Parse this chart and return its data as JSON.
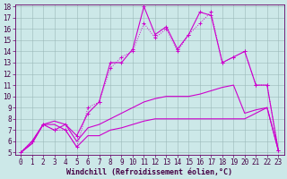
{
  "title": "",
  "xlabel": "Windchill (Refroidissement éolien,°C)",
  "background_color": "#cce8e8",
  "grid_color": "#b0c8c8",
  "line_color": "#cc00cc",
  "xlim": [
    -0.5,
    23.5
  ],
  "ylim": [
    4.8,
    18.2
  ],
  "xticks": [
    0,
    1,
    2,
    3,
    4,
    5,
    6,
    7,
    8,
    9,
    10,
    11,
    12,
    13,
    14,
    15,
    16,
    17,
    18,
    19,
    20,
    21,
    22,
    23
  ],
  "yticks": [
    5,
    6,
    7,
    8,
    9,
    10,
    11,
    12,
    13,
    14,
    15,
    16,
    17,
    18
  ],
  "line1_x": [
    0,
    1,
    2,
    3,
    4,
    5,
    6,
    7,
    8,
    9,
    10,
    11,
    12,
    13,
    14,
    15,
    16,
    17,
    18,
    19,
    20,
    21,
    22,
    23
  ],
  "line1_y": [
    5.0,
    5.8,
    7.5,
    7.5,
    7.0,
    5.5,
    6.5,
    6.5,
    7.0,
    7.2,
    7.5,
    7.8,
    8.0,
    8.0,
    8.0,
    8.0,
    8.0,
    8.0,
    8.0,
    8.0,
    8.0,
    8.5,
    9.0,
    5.2
  ],
  "line2_x": [
    0,
    1,
    2,
    3,
    4,
    5,
    6,
    7,
    8,
    9,
    10,
    11,
    12,
    13,
    14,
    15,
    16,
    17,
    18,
    19,
    20,
    21,
    22,
    23
  ],
  "line2_y": [
    5.0,
    5.8,
    7.5,
    7.8,
    7.5,
    6.0,
    7.2,
    7.5,
    8.0,
    8.5,
    9.0,
    9.5,
    9.8,
    10.0,
    10.0,
    10.0,
    10.2,
    10.5,
    10.8,
    11.0,
    8.5,
    8.8,
    9.0,
    5.2
  ],
  "line3_x": [
    0,
    1,
    2,
    3,
    4,
    5,
    6,
    7,
    8,
    9,
    10,
    11,
    12,
    13,
    14,
    15,
    16,
    17,
    18,
    19,
    20,
    21,
    22,
    23
  ],
  "line3_y": [
    5.0,
    6.0,
    7.5,
    7.0,
    7.0,
    5.5,
    9.0,
    9.5,
    12.5,
    13.5,
    14.0,
    16.5,
    15.2,
    16.0,
    14.0,
    15.5,
    16.5,
    17.5,
    13.0,
    13.5,
    14.0,
    11.0,
    11.0,
    5.2
  ],
  "line4_x": [
    0,
    1,
    2,
    3,
    4,
    5,
    6,
    7,
    8,
    9,
    10,
    11,
    12,
    13,
    14,
    15,
    16,
    17,
    18,
    19,
    20,
    21,
    22,
    23
  ],
  "line4_y": [
    5.0,
    6.0,
    7.5,
    7.0,
    7.5,
    6.5,
    8.5,
    9.5,
    13.0,
    13.0,
    14.2,
    18.0,
    15.5,
    16.2,
    14.2,
    15.5,
    17.5,
    17.2,
    13.0,
    13.5,
    14.0,
    11.0,
    11.0,
    5.2
  ],
  "marker_style": "+",
  "marker_size": 3.5,
  "linewidth": 0.8,
  "xlabel_fontsize": 6.0,
  "tick_fontsize": 5.5
}
